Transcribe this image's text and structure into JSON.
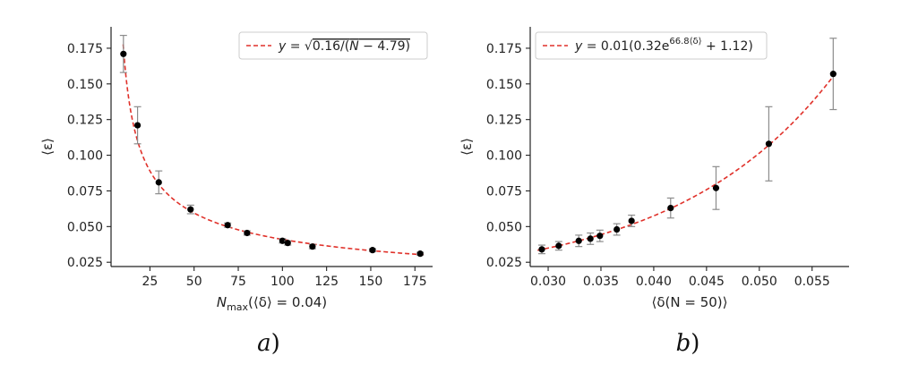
{
  "chart_data": [
    {
      "type": "scatter",
      "panel_label": "a)",
      "xlabel": "N_max(⟨δ⟩ = 0.04)",
      "ylabel": "⟨ε⟩",
      "xlim": [
        3,
        185
      ],
      "ylim": [
        0.022,
        0.19
      ],
      "xticks": [
        25,
        50,
        75,
        100,
        125,
        150,
        175
      ],
      "yticks": [
        0.025,
        0.05,
        0.075,
        0.1,
        0.125,
        0.15,
        0.175
      ],
      "ytick_labels": [
        "0.025",
        "0.050",
        "0.075",
        "0.100",
        "0.125",
        "0.150",
        "0.175"
      ],
      "grid": false,
      "legend_position": "top-right",
      "series": [
        {
          "name": "y = √(0.16/(N − 4.79))",
          "kind": "fit",
          "color": "#e0312a",
          "style": "dashed"
        },
        {
          "kind": "data",
          "color": "#000000",
          "points": [
            {
              "x": 10,
              "y": 0.171,
              "err": 0.013
            },
            {
              "x": 18,
              "y": 0.121,
              "err": 0.013
            },
            {
              "x": 30,
              "y": 0.081,
              "err": 0.008
            },
            {
              "x": 48,
              "y": 0.062,
              "err": 0.003
            },
            {
              "x": 69,
              "y": 0.051,
              "err": 0.0015
            },
            {
              "x": 80,
              "y": 0.0455,
              "err": 0.0015
            },
            {
              "x": 100,
              "y": 0.04,
              "err": 0.0015
            },
            {
              "x": 103,
              "y": 0.0385,
              "err": 0.0015
            },
            {
              "x": 117,
              "y": 0.036,
              "err": 0.0015
            },
            {
              "x": 151,
              "y": 0.0335,
              "err": 0.001
            },
            {
              "x": 178,
              "y": 0.031,
              "err": 0.001
            }
          ]
        }
      ]
    },
    {
      "type": "scatter",
      "panel_label": "b)",
      "xlabel": "⟨δ(N = 50)⟩",
      "ylabel": "⟨ε⟩",
      "xlim": [
        0.0283,
        0.0585
      ],
      "ylim": [
        0.022,
        0.19
      ],
      "xticks": [
        0.03,
        0.035,
        0.04,
        0.045,
        0.05,
        0.055
      ],
      "xtick_labels": [
        "0.030",
        "0.035",
        "0.040",
        "0.045",
        "0.050",
        "0.055"
      ],
      "yticks": [
        0.025,
        0.05,
        0.075,
        0.1,
        0.125,
        0.15,
        0.175
      ],
      "ytick_labels": [
        "0.025",
        "0.050",
        "0.075",
        "0.100",
        "0.125",
        "0.150",
        "0.175"
      ],
      "grid": false,
      "legend_position": "top-left",
      "series": [
        {
          "name": "y = 0.01(0.32e^{66.8⟨δ⟩} + 1.12)",
          "kind": "fit",
          "color": "#e0312a",
          "style": "dashed"
        },
        {
          "kind": "data",
          "color": "#000000",
          "points": [
            {
              "x": 0.0294,
              "y": 0.034,
              "err": 0.003
            },
            {
              "x": 0.031,
              "y": 0.0365,
              "err": 0.003
            },
            {
              "x": 0.0329,
              "y": 0.04,
              "err": 0.004
            },
            {
              "x": 0.034,
              "y": 0.0415,
              "err": 0.004
            },
            {
              "x": 0.0349,
              "y": 0.0435,
              "err": 0.004
            },
            {
              "x": 0.0365,
              "y": 0.048,
              "err": 0.004
            },
            {
              "x": 0.0379,
              "y": 0.054,
              "err": 0.004
            },
            {
              "x": 0.0416,
              "y": 0.063,
              "err": 0.007
            },
            {
              "x": 0.0459,
              "y": 0.077,
              "err": 0.015
            },
            {
              "x": 0.0509,
              "y": 0.108,
              "err": 0.026
            },
            {
              "x": 0.057,
              "y": 0.157,
              "err": 0.025
            }
          ]
        }
      ]
    }
  ]
}
